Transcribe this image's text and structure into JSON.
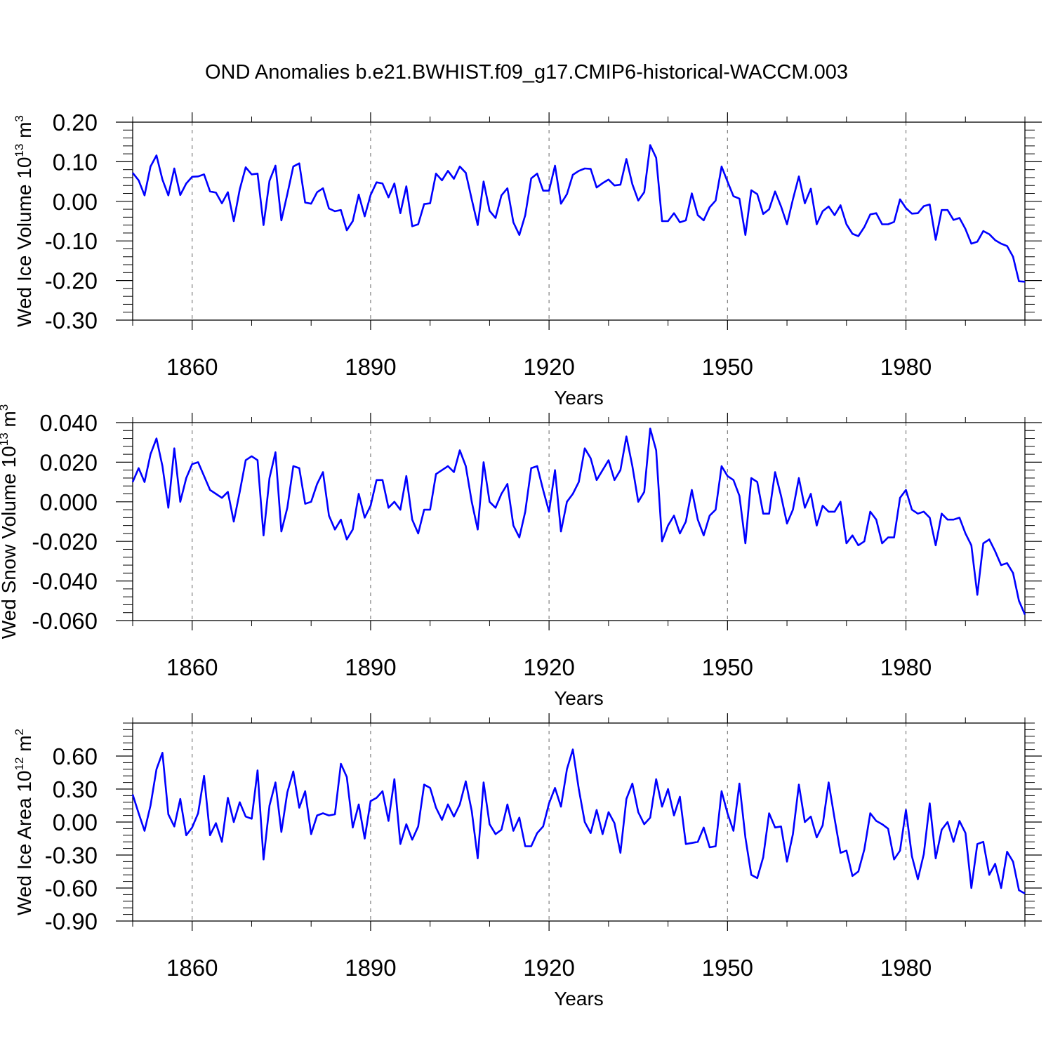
{
  "figure_title": "OND Anomalies b.e21.BWHIST.f09_g17.CMIP6-historical-WACCM.003",
  "colors": {
    "line": "#0000ff",
    "axis": "#000000",
    "grid": "#808080"
  },
  "panels": [
    {
      "ylabel_main": "Wed Ice Volume 10",
      "ylabel_exp": "13",
      "ylabel_unit": " m",
      "ylabel_unit_exp": "3",
      "xlabel": "Years"
    },
    {
      "ylabel_main": "Wed Snow Volume 10",
      "ylabel_exp": "13",
      "ylabel_unit": " m",
      "ylabel_unit_exp": "3",
      "xlabel": "Years"
    },
    {
      "ylabel_main": "Wed Ice Area 10",
      "ylabel_exp": "12",
      "ylabel_unit": " m",
      "ylabel_unit_exp": "2",
      "xlabel": "Years"
    }
  ],
  "chart_data": [
    {
      "type": "line",
      "title": "OND Anomalies b.e21.BWHIST.f09_g17.CMIP6-historical-WACCM.003",
      "xlabel": "Years",
      "ylabel": "Wed Ice Volume 10^13 m^3",
      "xlim": [
        1850,
        2000
      ],
      "ylim": [
        -0.3,
        0.2
      ],
      "xticks": [
        1860,
        1890,
        1920,
        1950,
        1980
      ],
      "yticks": [
        0.2,
        0.1,
        0.0,
        -0.1,
        -0.2,
        -0.3
      ],
      "ytick_labels": [
        "0.20",
        "0.10",
        "0.00",
        "-0.10",
        "-0.20",
        "-0.30"
      ],
      "x_start": 1850,
      "series": [
        {
          "name": "Wed Ice Volume",
          "values": [
            0.072,
            0.053,
            0.015,
            0.088,
            0.116,
            0.055,
            0.015,
            0.083,
            0.016,
            0.045,
            0.062,
            0.063,
            0.068,
            0.025,
            0.022,
            -0.005,
            0.023,
            -0.05,
            0.03,
            0.086,
            0.068,
            0.07,
            -0.06,
            0.052,
            0.09,
            -0.048,
            0.018,
            0.088,
            0.096,
            -0.003,
            -0.006,
            0.023,
            0.033,
            -0.018,
            -0.025,
            -0.022,
            -0.073,
            -0.05,
            0.017,
            -0.038,
            0.016,
            0.048,
            0.045,
            0.01,
            0.045,
            -0.03,
            0.038,
            -0.063,
            -0.058,
            -0.007,
            -0.005,
            0.07,
            0.053,
            0.077,
            0.057,
            0.088,
            0.072,
            0.005,
            -0.06,
            0.05,
            -0.024,
            -0.042,
            0.015,
            0.033,
            -0.053,
            -0.085,
            -0.035,
            0.058,
            0.07,
            0.027,
            0.027,
            0.09,
            -0.006,
            0.018,
            0.067,
            0.077,
            0.083,
            0.082,
            0.035,
            0.046,
            0.055,
            0.04,
            0.042,
            0.107,
            0.043,
            0.002,
            0.023,
            0.142,
            0.11,
            -0.05,
            -0.05,
            -0.03,
            -0.053,
            -0.048,
            0.02,
            -0.035,
            -0.048,
            -0.015,
            0.002,
            0.088,
            0.05,
            0.013,
            0.007,
            -0.085,
            0.028,
            0.018,
            -0.032,
            -0.02,
            0.025,
            -0.013,
            -0.058,
            0.005,
            0.063,
            -0.005,
            0.032,
            -0.058,
            -0.025,
            -0.013,
            -0.035,
            -0.01,
            -0.058,
            -0.082,
            -0.088,
            -0.065,
            -0.033,
            -0.03,
            -0.058,
            -0.058,
            -0.052,
            0.005,
            -0.017,
            -0.031,
            -0.03,
            -0.012,
            -0.008,
            -0.097,
            -0.022,
            -0.022,
            -0.047,
            -0.042,
            -0.07,
            -0.107,
            -0.102,
            -0.075,
            -0.083,
            -0.098,
            -0.107,
            -0.113,
            -0.14,
            -0.202,
            -0.203
          ]
        }
      ]
    },
    {
      "type": "line",
      "title": "",
      "xlabel": "Years",
      "ylabel": "Wed Snow Volume 10^13 m^3",
      "xlim": [
        1850,
        2000
      ],
      "ylim": [
        -0.06,
        0.04
      ],
      "xticks": [
        1860,
        1890,
        1920,
        1950,
        1980
      ],
      "yticks": [
        0.04,
        0.02,
        0.0,
        -0.02,
        -0.04,
        -0.06
      ],
      "ytick_labels": [
        "0.040",
        "0.020",
        "0.000",
        "-0.020",
        "-0.040",
        "-0.060"
      ],
      "x_start": 1850,
      "series": [
        {
          "name": "Wed Snow Volume",
          "values": [
            0.01,
            0.017,
            0.01,
            0.024,
            0.032,
            0.018,
            -0.003,
            0.027,
            0.0,
            0.012,
            0.019,
            0.02,
            0.013,
            0.006,
            0.004,
            0.002,
            0.005,
            -0.01,
            0.005,
            0.021,
            0.023,
            0.021,
            -0.017,
            0.012,
            0.025,
            -0.015,
            -0.003,
            0.018,
            0.017,
            -0.001,
            0.0,
            0.009,
            0.015,
            -0.007,
            -0.014,
            -0.009,
            -0.019,
            -0.014,
            0.004,
            -0.008,
            -0.002,
            0.011,
            0.011,
            -0.003,
            0.0,
            -0.004,
            0.013,
            -0.009,
            -0.016,
            -0.004,
            -0.004,
            0.014,
            0.016,
            0.018,
            0.015,
            0.026,
            0.018,
            0.0,
            -0.014,
            0.02,
            0.0,
            -0.003,
            0.004,
            0.009,
            -0.012,
            -0.018,
            -0.005,
            0.017,
            0.018,
            0.006,
            -0.005,
            0.016,
            -0.015,
            0.0,
            0.004,
            0.01,
            0.027,
            0.022,
            0.011,
            0.016,
            0.021,
            0.011,
            0.016,
            0.033,
            0.018,
            0.0,
            0.005,
            0.037,
            0.026,
            -0.02,
            -0.012,
            -0.007,
            -0.016,
            -0.01,
            0.006,
            -0.009,
            -0.017,
            -0.007,
            -0.004,
            0.018,
            0.013,
            0.011,
            0.003,
            -0.021,
            0.012,
            0.01,
            -0.006,
            -0.006,
            0.015,
            0.003,
            -0.011,
            -0.004,
            0.012,
            -0.003,
            0.004,
            -0.012,
            -0.002,
            -0.005,
            -0.005,
            0.0,
            -0.021,
            -0.017,
            -0.022,
            -0.02,
            -0.005,
            -0.009,
            -0.021,
            -0.018,
            -0.018,
            0.002,
            0.006,
            -0.004,
            -0.006,
            -0.005,
            -0.008,
            -0.022,
            -0.006,
            -0.009,
            -0.009,
            -0.008,
            -0.016,
            -0.022,
            -0.047,
            -0.021,
            -0.019,
            -0.025,
            -0.032,
            -0.031,
            -0.036,
            -0.05,
            -0.057
          ]
        }
      ]
    },
    {
      "type": "line",
      "title": "",
      "xlabel": "Years",
      "ylabel": "Wed Ice Area 10^12 m^2",
      "xlim": [
        1850,
        2000
      ],
      "ylim": [
        -0.9,
        0.9
      ],
      "xticks": [
        1860,
        1890,
        1920,
        1950,
        1980
      ],
      "yticks": [
        0.6,
        0.3,
        0.0,
        -0.3,
        -0.6,
        -0.9
      ],
      "ytick_labels": [
        "0.60",
        "0.30",
        "0.00",
        "-0.30",
        "-0.60",
        "-0.90"
      ],
      "x_start": 1850,
      "series": [
        {
          "name": "Wed Ice Area",
          "values": [
            0.25,
            0.08,
            -0.08,
            0.15,
            0.48,
            0.63,
            0.07,
            -0.04,
            0.21,
            -0.12,
            -0.05,
            0.08,
            0.42,
            -0.12,
            -0.01,
            -0.18,
            0.22,
            0.0,
            0.18,
            0.05,
            0.03,
            0.47,
            -0.34,
            0.15,
            0.36,
            -0.09,
            0.27,
            0.46,
            0.13,
            0.28,
            -0.11,
            0.06,
            0.08,
            0.06,
            0.07,
            0.53,
            0.41,
            -0.05,
            0.16,
            -0.15,
            0.19,
            0.22,
            0.28,
            0.01,
            0.39,
            -0.2,
            -0.02,
            -0.16,
            -0.04,
            0.34,
            0.31,
            0.13,
            0.02,
            0.16,
            0.05,
            0.16,
            0.37,
            0.1,
            -0.33,
            0.36,
            -0.02,
            -0.11,
            -0.07,
            0.16,
            -0.08,
            0.04,
            -0.22,
            -0.22,
            -0.1,
            -0.04,
            0.17,
            0.31,
            0.14,
            0.48,
            0.66,
            0.3,
            0.0,
            -0.1,
            0.11,
            -0.11,
            0.09,
            -0.01,
            -0.28,
            0.21,
            0.35,
            0.09,
            -0.02,
            0.04,
            0.39,
            0.14,
            0.3,
            0.06,
            0.23,
            -0.2,
            -0.19,
            -0.18,
            -0.05,
            -0.23,
            -0.22,
            0.28,
            0.08,
            -0.08,
            0.35,
            -0.14,
            -0.48,
            -0.51,
            -0.32,
            0.08,
            -0.05,
            -0.04,
            -0.36,
            -0.11,
            0.34,
            0.0,
            0.05,
            -0.14,
            -0.03,
            0.36,
            0.03,
            -0.28,
            -0.26,
            -0.49,
            -0.45,
            -0.25,
            0.08,
            0.01,
            -0.02,
            -0.06,
            -0.34,
            -0.26,
            0.11,
            -0.31,
            -0.52,
            -0.29,
            0.17,
            -0.33,
            -0.07,
            0.0,
            -0.18,
            0.01,
            -0.1,
            -0.6,
            -0.2,
            -0.18,
            -0.48,
            -0.38,
            -0.6,
            -0.27,
            -0.36,
            -0.62,
            -0.65
          ]
        }
      ]
    }
  ]
}
